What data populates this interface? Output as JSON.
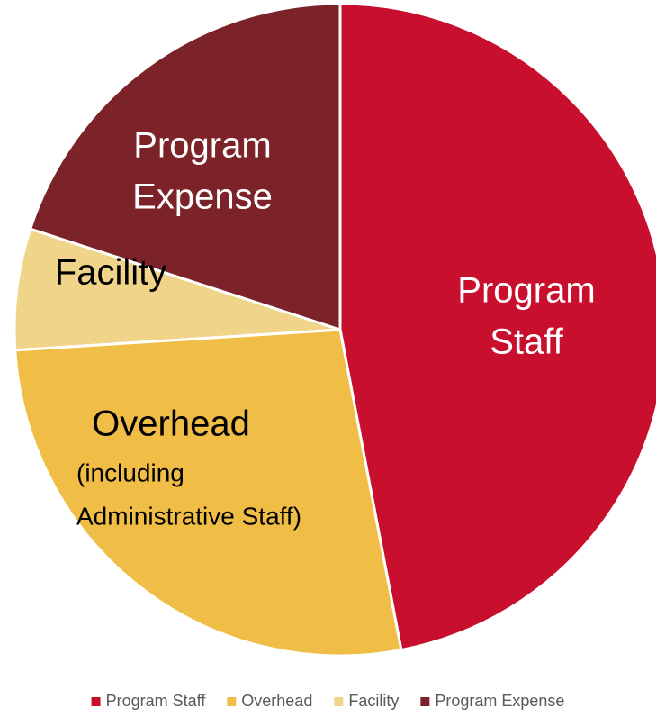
{
  "chart_data": {
    "type": "pie",
    "categories": [
      "Program Staff",
      "Overhead",
      "Facility",
      "Program Expense"
    ],
    "values": [
      47,
      27,
      6,
      20
    ],
    "colors": [
      "#c8102e",
      "#f0be46",
      "#f0d48a",
      "#7b2329"
    ],
    "slice_labels": [
      [
        "Program",
        "Staff"
      ],
      [
        "Overhead"
      ],
      [
        "Facility"
      ],
      [
        "Program",
        "Expense"
      ]
    ],
    "overhead_note": [
      "(including",
      "Administrative Staff)"
    ],
    "legend": "bottom"
  }
}
